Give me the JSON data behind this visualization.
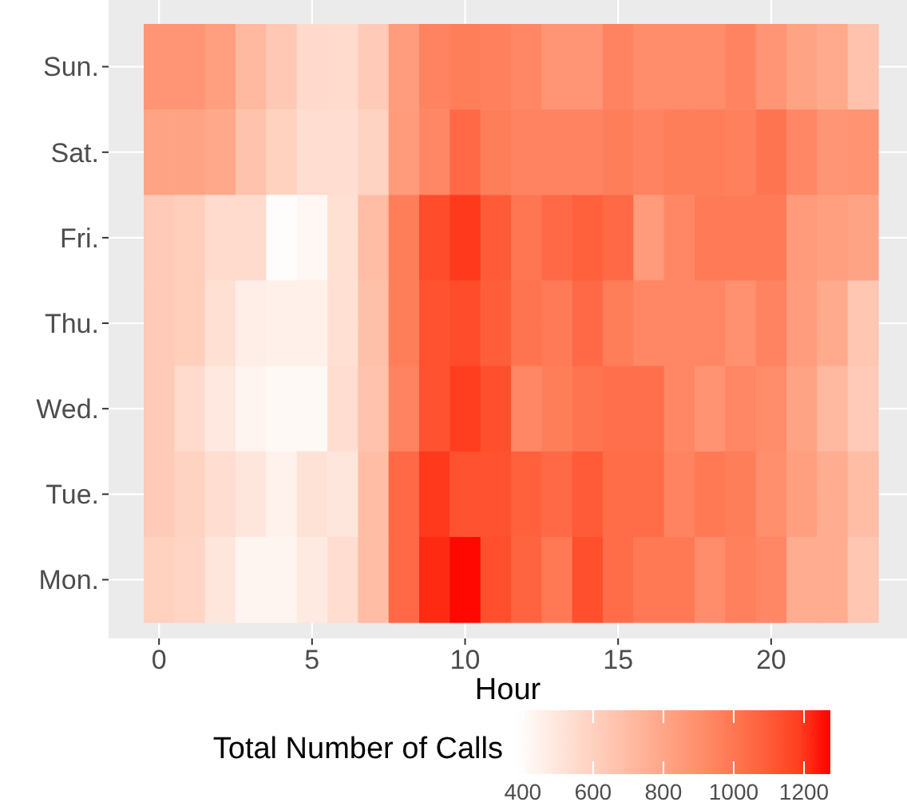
{
  "chart_data": {
    "type": "heatmap",
    "xlabel": "Hour",
    "clabel": "Total Number of Calls",
    "categories": [
      "0",
      null,
      null,
      null,
      null,
      "5",
      null,
      null,
      null,
      null,
      "10",
      null,
      null,
      null,
      null,
      "15",
      null,
      null,
      null,
      null,
      "20",
      null,
      null,
      null
    ],
    "y_categories": [
      "Sun.",
      "Sat.",
      "Fri.",
      "Thu.",
      "Wed.",
      "Tue.",
      "Mon."
    ],
    "cells": [
      [
        870,
        870,
        830,
        710,
        640,
        560,
        550,
        630,
        840,
        950,
        970,
        960,
        930,
        870,
        870,
        950,
        910,
        910,
        910,
        950,
        870,
        810,
        780,
        670
      ],
      [
        810,
        810,
        790,
        670,
        600,
        540,
        540,
        590,
        850,
        930,
        1050,
        970,
        950,
        950,
        950,
        970,
        950,
        970,
        970,
        960,
        1010,
        930,
        870,
        880
      ],
      [
        630,
        610,
        550,
        550,
        390,
        420,
        530,
        690,
        970,
        1150,
        1200,
        1100,
        1000,
        1050,
        1080,
        1050,
        850,
        930,
        980,
        980,
        980,
        850,
        830,
        810
      ],
      [
        630,
        610,
        530,
        460,
        450,
        450,
        530,
        680,
        970,
        1130,
        1150,
        1090,
        1010,
        980,
        1050,
        970,
        930,
        930,
        930,
        890,
        950,
        840,
        780,
        650
      ],
      [
        630,
        550,
        490,
        430,
        410,
        410,
        540,
        670,
        950,
        1130,
        1190,
        1140,
        930,
        970,
        1010,
        1030,
        1030,
        930,
        880,
        930,
        910,
        810,
        710,
        630
      ],
      [
        630,
        590,
        540,
        500,
        440,
        520,
        500,
        690,
        1050,
        1200,
        1130,
        1130,
        1080,
        1050,
        1100,
        1040,
        1040,
        950,
        990,
        970,
        900,
        830,
        770,
        690
      ],
      [
        600,
        580,
        500,
        430,
        430,
        480,
        540,
        690,
        1050,
        1230,
        1270,
        1140,
        1070,
        990,
        1140,
        1040,
        990,
        990,
        910,
        960,
        930,
        770,
        770,
        650
      ]
    ],
    "clim": [
      380,
      1275
    ],
    "cticks": [
      400,
      600,
      800,
      1000,
      1200
    ],
    "grid": true
  }
}
